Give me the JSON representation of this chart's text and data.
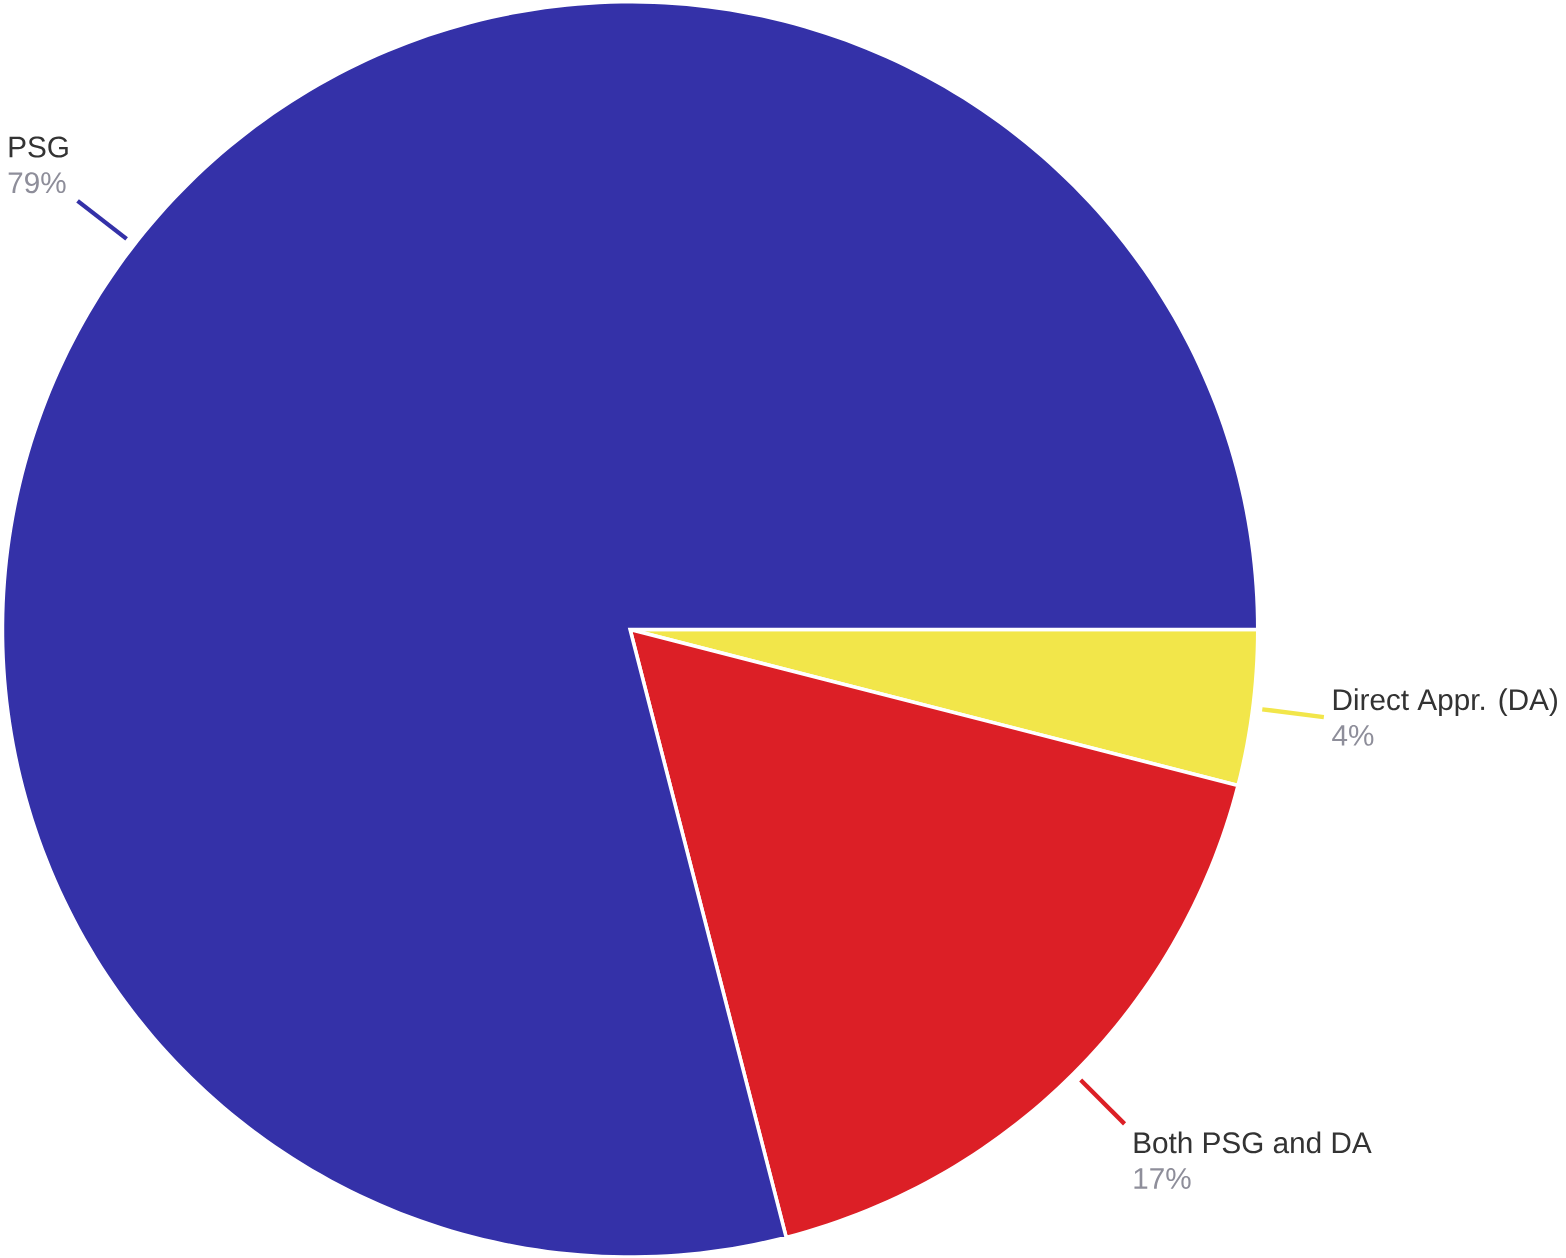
{
  "chart_data": {
    "type": "pie",
    "categories": [
      "Direct Appr. (DA)",
      "Both PSG and DA",
      "PSG"
    ],
    "values": [
      4,
      17,
      79
    ],
    "value_labels": [
      "4%",
      "17%",
      "79%"
    ],
    "colors": [
      "#f2e64a",
      "#dc1f26",
      "#3431a8"
    ]
  }
}
